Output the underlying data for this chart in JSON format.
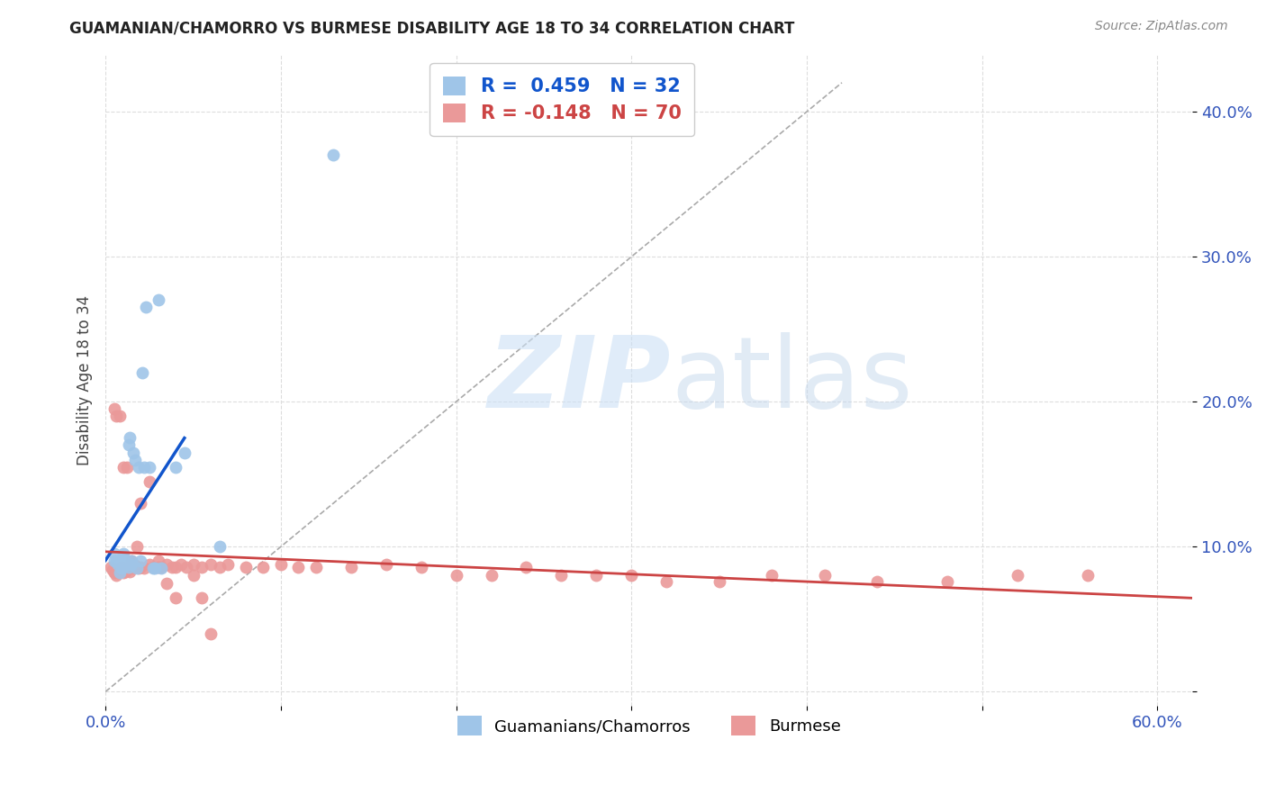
{
  "title": "GUAMANIAN/CHAMORRO VS BURMESE DISABILITY AGE 18 TO 34 CORRELATION CHART",
  "source": "Source: ZipAtlas.com",
  "ylabel": "Disability Age 18 to 34",
  "xlim": [
    0.0,
    0.62
  ],
  "ylim": [
    -0.01,
    0.44
  ],
  "x_ticks": [
    0.0,
    0.1,
    0.2,
    0.3,
    0.4,
    0.5,
    0.6
  ],
  "x_tick_labels": [
    "0.0%",
    "",
    "",
    "",
    "",
    "",
    "60.0%"
  ],
  "y_ticks": [
    0.0,
    0.1,
    0.2,
    0.3,
    0.4
  ],
  "y_tick_labels": [
    "",
    "10.0%",
    "20.0%",
    "30.0%",
    "40.0%"
  ],
  "blue_color": "#9fc5e8",
  "pink_color": "#ea9999",
  "blue_line_color": "#1155cc",
  "pink_line_color": "#cc4444",
  "guam_points_x": [
    0.005,
    0.005,
    0.006,
    0.007,
    0.008,
    0.009,
    0.01,
    0.01,
    0.011,
    0.012,
    0.013,
    0.013,
    0.014,
    0.015,
    0.015,
    0.016,
    0.017,
    0.018,
    0.019,
    0.02,
    0.021,
    0.022,
    0.023,
    0.025,
    0.027,
    0.028,
    0.03,
    0.032,
    0.04,
    0.045,
    0.065,
    0.13
  ],
  "guam_points_y": [
    0.095,
    0.09,
    0.09,
    0.088,
    0.082,
    0.085,
    0.095,
    0.092,
    0.09,
    0.088,
    0.086,
    0.17,
    0.175,
    0.09,
    0.088,
    0.165,
    0.16,
    0.085,
    0.155,
    0.09,
    0.22,
    0.155,
    0.265,
    0.155,
    0.085,
    0.085,
    0.27,
    0.085,
    0.155,
    0.165,
    0.1,
    0.37
  ],
  "burm_points_x": [
    0.003,
    0.004,
    0.005,
    0.006,
    0.007,
    0.008,
    0.009,
    0.01,
    0.011,
    0.012,
    0.013,
    0.014,
    0.015,
    0.016,
    0.017,
    0.018,
    0.019,
    0.02,
    0.022,
    0.025,
    0.027,
    0.03,
    0.032,
    0.035,
    0.038,
    0.04,
    0.043,
    0.046,
    0.05,
    0.055,
    0.06,
    0.065,
    0.07,
    0.08,
    0.09,
    0.1,
    0.11,
    0.12,
    0.14,
    0.16,
    0.18,
    0.2,
    0.22,
    0.24,
    0.26,
    0.28,
    0.3,
    0.32,
    0.35,
    0.38,
    0.41,
    0.44,
    0.48,
    0.52,
    0.56,
    0.005,
    0.006,
    0.008,
    0.01,
    0.012,
    0.015,
    0.018,
    0.02,
    0.025,
    0.03,
    0.035,
    0.04,
    0.05,
    0.055,
    0.06
  ],
  "burm_points_y": [
    0.086,
    0.084,
    0.082,
    0.08,
    0.082,
    0.085,
    0.086,
    0.082,
    0.083,
    0.084,
    0.085,
    0.083,
    0.088,
    0.085,
    0.087,
    0.086,
    0.085,
    0.086,
    0.085,
    0.088,
    0.086,
    0.086,
    0.086,
    0.088,
    0.086,
    0.086,
    0.088,
    0.086,
    0.088,
    0.086,
    0.088,
    0.086,
    0.088,
    0.086,
    0.086,
    0.088,
    0.086,
    0.086,
    0.086,
    0.088,
    0.086,
    0.08,
    0.08,
    0.086,
    0.08,
    0.08,
    0.08,
    0.076,
    0.076,
    0.08,
    0.08,
    0.076,
    0.076,
    0.08,
    0.08,
    0.195,
    0.19,
    0.19,
    0.155,
    0.155,
    0.09,
    0.1,
    0.13,
    0.145,
    0.09,
    0.075,
    0.065,
    0.08,
    0.065,
    0.04
  ]
}
